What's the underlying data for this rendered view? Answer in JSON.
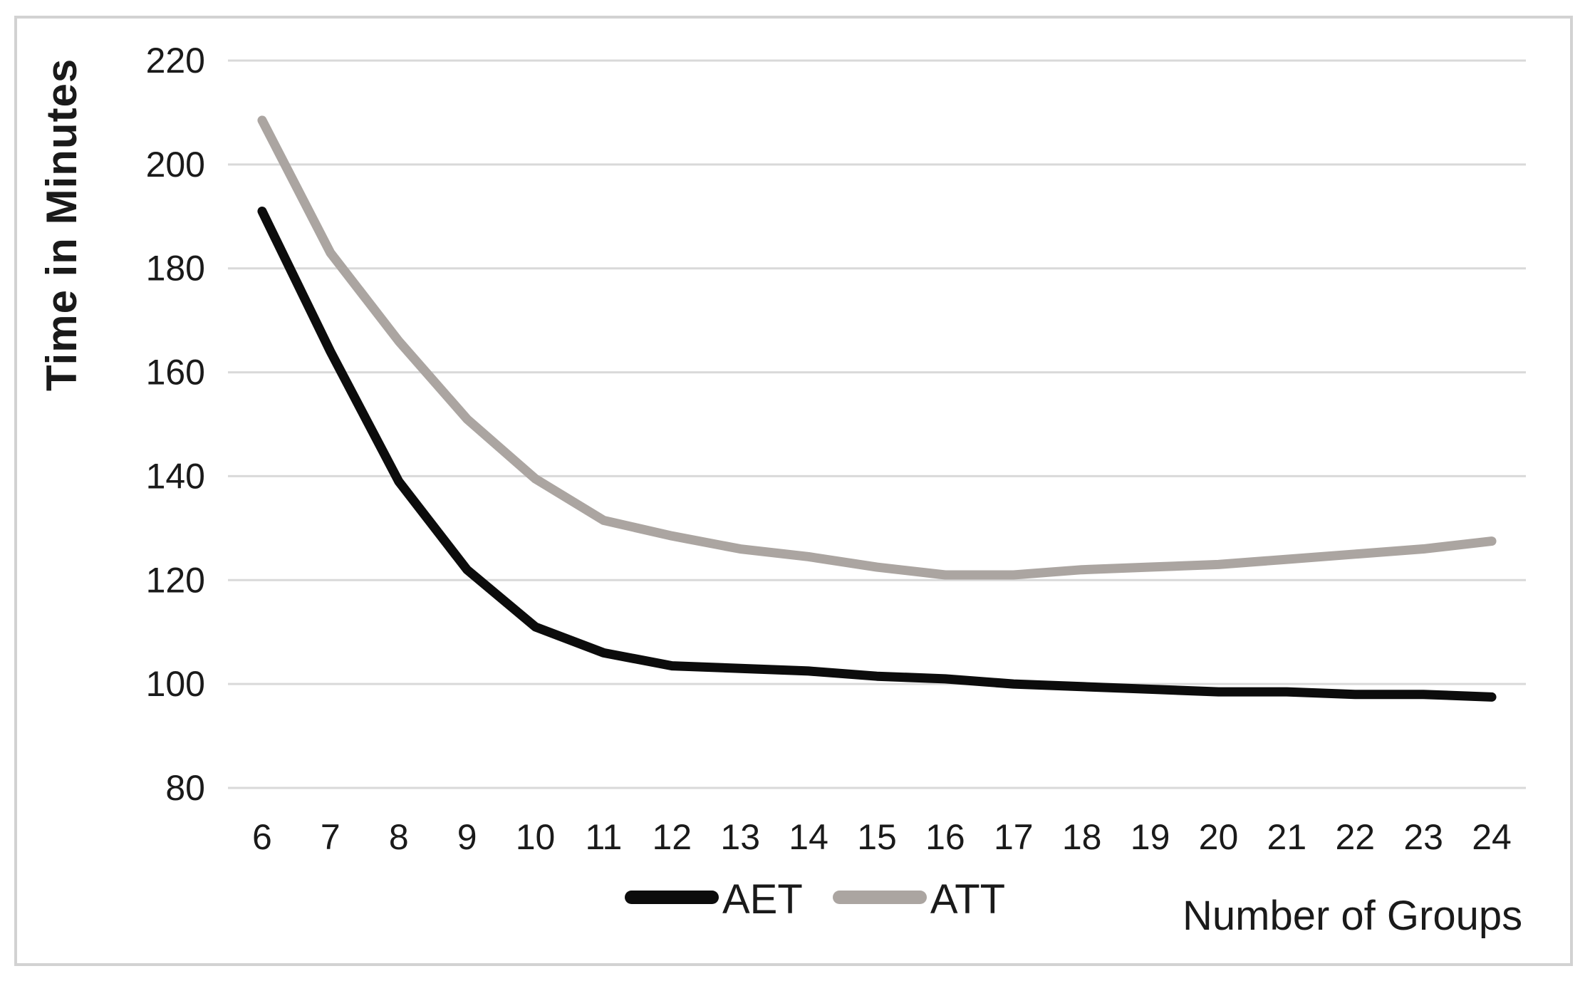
{
  "chart_data": {
    "type": "line",
    "x": [
      6,
      7,
      8,
      9,
      10,
      11,
      12,
      13,
      14,
      15,
      16,
      17,
      18,
      19,
      20,
      21,
      22,
      23,
      24
    ],
    "series": [
      {
        "name": "AET",
        "color": "#0c0c0c",
        "values": [
          191,
          164,
          139,
          122,
          111,
          106,
          103.5,
          103,
          102.5,
          101.5,
          101,
          100,
          99.5,
          99,
          98.5,
          98.5,
          98,
          98,
          97.5
        ]
      },
      {
        "name": "ATT",
        "color": "#aba5a1",
        "values": [
          208.5,
          183,
          166,
          151,
          139.5,
          131.5,
          128.5,
          126,
          124.5,
          122.5,
          121,
          121,
          122,
          122.5,
          123,
          124,
          125,
          126,
          127.5
        ]
      }
    ],
    "title": "",
    "xlabel": "Number of Groups",
    "ylabel": "Time in Minutes",
    "ylim": [
      80,
      220
    ],
    "ytick_step": 20,
    "grid": true,
    "legend_position": "bottom",
    "colors": {
      "gridline": "#d9d9d9",
      "frame_border": "#d2d2d2",
      "text": "#1a1a1a"
    }
  }
}
